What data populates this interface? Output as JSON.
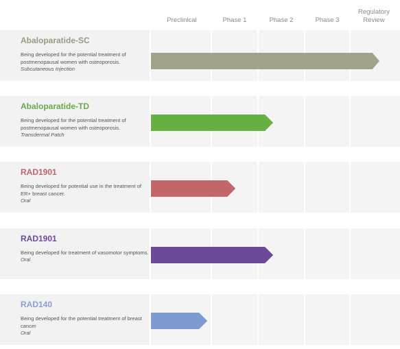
{
  "phases": [
    "Preclinical",
    "Phase 1",
    "Phase 2",
    "Phase 3",
    "Regulatory Review"
  ],
  "programs": [
    {
      "name": "Abaloparatide-SC",
      "description": "Being developed for the potential treatment of postmenopausal women with osteoporosis.",
      "route": "Subcutaneous Injection",
      "name_color": "#9a9a80",
      "bar_color": "#a2a18a",
      "progress_phases": 5
    },
    {
      "name": "Abaloparatide-TD",
      "description": "Being developed for the potential treatment of postmenopausal women with osteoporosis.",
      "route": "Transdermal Patch",
      "name_color": "#6aa84f",
      "bar_color": "#66b044",
      "progress_phases": 2.6
    },
    {
      "name": "RAD1901",
      "description": "Being developed for potential use in the treatment of ER+ breast cancer.",
      "route": "Oral",
      "name_color": "#c0626a",
      "bar_color": "#c2666a",
      "progress_phases": 1.8
    },
    {
      "name": "RAD1901",
      "description": "Being developed for treatment of vasomotor symptoms.",
      "route": "Oral",
      "name_color": "#6e4a9a",
      "bar_color": "#6c4a9a",
      "progress_phases": 2.6
    },
    {
      "name": "RAD140",
      "description": "Being developed for the potential treatment of breast cancer",
      "route": "Oral",
      "name_color": "#8a9fd0",
      "bar_color": "#7f9bd2",
      "progress_phases": 1.2
    }
  ]
}
